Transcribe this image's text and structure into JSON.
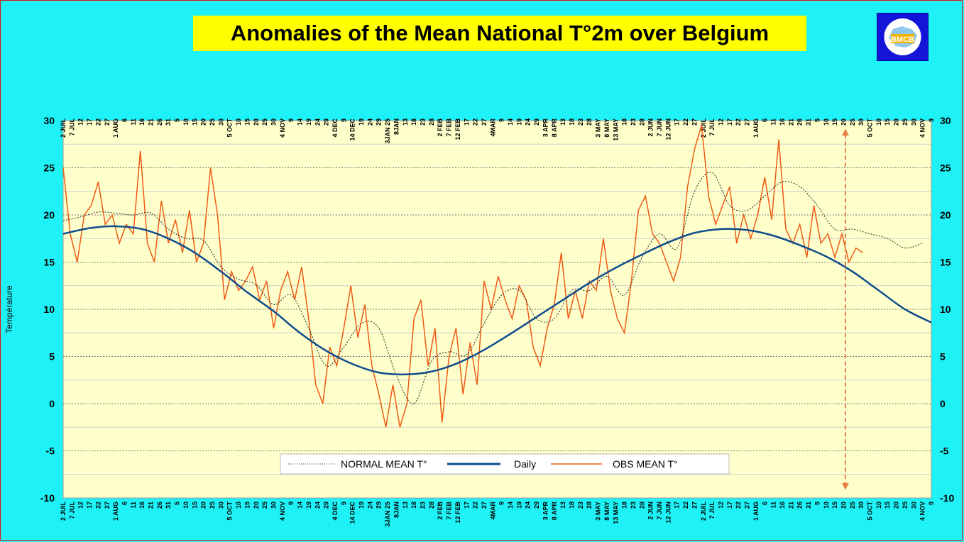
{
  "title": "Anomalies of the Mean National T°2m over Belgium",
  "logo_text": "BMCB",
  "colors": {
    "background": "#1ff2f7",
    "plot": "#ffffcc",
    "normal": "#0e4d8c",
    "obs": "#f05a14",
    "daily": "#222222",
    "marker": "#e8804a"
  },
  "chart_data": {
    "type": "line",
    "ylabel": "Température",
    "ylim": [
      -10,
      30
    ],
    "yticks": [
      -10,
      -5,
      0,
      5,
      10,
      15,
      20,
      25,
      30
    ],
    "x_start": "2 JUIL",
    "x_end": "9 NOV (following year)",
    "x_days": 495,
    "x_tick_labels": [
      {
        "day": 0,
        "label": "2 JUIL"
      },
      {
        "day": 5,
        "label": "7 JUL"
      },
      {
        "day": 10,
        "label": "12"
      },
      {
        "day": 15,
        "label": "17"
      },
      {
        "day": 20,
        "label": "22"
      },
      {
        "day": 25,
        "label": "27"
      },
      {
        "day": 30,
        "label": "1 AUG"
      },
      {
        "day": 35,
        "label": "6"
      },
      {
        "day": 40,
        "label": "11"
      },
      {
        "day": 45,
        "label": "16"
      },
      {
        "day": 50,
        "label": "21"
      },
      {
        "day": 55,
        "label": "26"
      },
      {
        "day": 60,
        "label": "31"
      },
      {
        "day": 65,
        "label": "5"
      },
      {
        "day": 70,
        "label": "10"
      },
      {
        "day": 75,
        "label": "15"
      },
      {
        "day": 80,
        "label": "20"
      },
      {
        "day": 85,
        "label": "25"
      },
      {
        "day": 90,
        "label": "30"
      },
      {
        "day": 95,
        "label": "5 OCT"
      },
      {
        "day": 100,
        "label": "10"
      },
      {
        "day": 105,
        "label": "15"
      },
      {
        "day": 110,
        "label": "20"
      },
      {
        "day": 115,
        "label": "25"
      },
      {
        "day": 120,
        "label": "30"
      },
      {
        "day": 125,
        "label": "4 NOV"
      },
      {
        "day": 130,
        "label": "9"
      },
      {
        "day": 135,
        "label": "14"
      },
      {
        "day": 140,
        "label": "19"
      },
      {
        "day": 145,
        "label": "24"
      },
      {
        "day": 150,
        "label": "29"
      },
      {
        "day": 155,
        "label": "4 DEC"
      },
      {
        "day": 160,
        "label": "9"
      },
      {
        "day": 165,
        "label": "14 DEC"
      },
      {
        "day": 170,
        "label": "19"
      },
      {
        "day": 175,
        "label": "24"
      },
      {
        "day": 180,
        "label": "29"
      },
      {
        "day": 185,
        "label": "3JAN 25"
      },
      {
        "day": 190,
        "label": "8JAN"
      },
      {
        "day": 195,
        "label": "13"
      },
      {
        "day": 200,
        "label": "18"
      },
      {
        "day": 205,
        "label": "23"
      },
      {
        "day": 210,
        "label": "28"
      },
      {
        "day": 215,
        "label": "2 FEB"
      },
      {
        "day": 220,
        "label": "7 FEB"
      },
      {
        "day": 225,
        "label": "12 FEB"
      },
      {
        "day": 230,
        "label": "17"
      },
      {
        "day": 235,
        "label": "22"
      },
      {
        "day": 240,
        "label": "27"
      },
      {
        "day": 245,
        "label": "4MAR"
      },
      {
        "day": 250,
        "label": "9"
      },
      {
        "day": 255,
        "label": "14"
      },
      {
        "day": 260,
        "label": "19"
      },
      {
        "day": 265,
        "label": "24"
      },
      {
        "day": 270,
        "label": "29"
      },
      {
        "day": 275,
        "label": "3 APR"
      },
      {
        "day": 280,
        "label": "8 APR"
      },
      {
        "day": 285,
        "label": "13"
      },
      {
        "day": 290,
        "label": "18"
      },
      {
        "day": 295,
        "label": "23"
      },
      {
        "day": 300,
        "label": "28"
      },
      {
        "day": 305,
        "label": "3 MAY"
      },
      {
        "day": 310,
        "label": "8 MAY"
      },
      {
        "day": 315,
        "label": "13 MAY"
      },
      {
        "day": 320,
        "label": "18"
      },
      {
        "day": 325,
        "label": "23"
      },
      {
        "day": 330,
        "label": "28"
      },
      {
        "day": 335,
        "label": "2 JUN"
      },
      {
        "day": 340,
        "label": "7 JUN"
      },
      {
        "day": 345,
        "label": "12 JUN"
      },
      {
        "day": 350,
        "label": "17"
      },
      {
        "day": 355,
        "label": "22"
      },
      {
        "day": 360,
        "label": "27"
      },
      {
        "day": 365,
        "label": "2 JUIL"
      },
      {
        "day": 370,
        "label": "7 JUL"
      },
      {
        "day": 375,
        "label": "12"
      },
      {
        "day": 380,
        "label": "17"
      },
      {
        "day": 385,
        "label": "22"
      },
      {
        "day": 390,
        "label": "27"
      },
      {
        "day": 395,
        "label": "1 AUG"
      },
      {
        "day": 400,
        "label": "6"
      },
      {
        "day": 405,
        "label": "11"
      },
      {
        "day": 410,
        "label": "16"
      },
      {
        "day": 415,
        "label": "21"
      },
      {
        "day": 420,
        "label": "26"
      },
      {
        "day": 425,
        "label": "31"
      },
      {
        "day": 430,
        "label": "5"
      },
      {
        "day": 435,
        "label": "10"
      },
      {
        "day": 440,
        "label": "15"
      },
      {
        "day": 445,
        "label": "20"
      },
      {
        "day": 450,
        "label": "25"
      },
      {
        "day": 455,
        "label": "30"
      },
      {
        "day": 460,
        "label": "5 OCT"
      },
      {
        "day": 465,
        "label": "10"
      },
      {
        "day": 470,
        "label": "15"
      },
      {
        "day": 475,
        "label": "20"
      },
      {
        "day": 480,
        "label": "25"
      },
      {
        "day": 485,
        "label": "30"
      },
      {
        "day": 490,
        "label": "4 NOV"
      },
      {
        "day": 495,
        "label": "9"
      }
    ],
    "series": [
      {
        "name": "NORMAL MEAN T°",
        "style": "dotted",
        "x": [
          0,
          10,
          20,
          30,
          40,
          50,
          60,
          70,
          80,
          90,
          100,
          110,
          120,
          130,
          140,
          150,
          160,
          170,
          180,
          190,
          200,
          210,
          220,
          230,
          240,
          250,
          260,
          270,
          280,
          290,
          300,
          310,
          320,
          330,
          340,
          350,
          360,
          370,
          380,
          390,
          400,
          410,
          420,
          430,
          440,
          450,
          460,
          470,
          480,
          490
        ],
        "values": [
          19.4,
          19.8,
          20.3,
          20.2,
          20.0,
          20.2,
          18.5,
          17.5,
          17.3,
          14.5,
          13.2,
          12.6,
          10.5,
          11.5,
          8.0,
          4.0,
          6.0,
          8.5,
          8.0,
          3.0,
          0.0,
          4.5,
          5.5,
          5.2,
          8.5,
          11.5,
          12.0,
          9.0,
          9.0,
          12.0,
          12.0,
          13.5,
          11.5,
          15.5,
          18.0,
          16.5,
          22.5,
          24.5,
          21.0,
          20.5,
          22.0,
          23.5,
          23.0,
          21.0,
          18.5,
          18.5,
          18.0,
          17.5,
          16.5,
          17.0
        ]
      },
      {
        "name": "Daily",
        "style": "solid",
        "x": [
          0,
          15,
          30,
          45,
          60,
          75,
          90,
          105,
          120,
          135,
          150,
          165,
          180,
          195,
          210,
          225,
          240,
          255,
          270,
          285,
          300,
          315,
          330,
          345,
          360,
          375,
          390,
          405,
          420,
          435,
          450,
          465,
          480,
          495
        ],
        "values": [
          18.0,
          18.6,
          18.8,
          18.5,
          17.5,
          16.0,
          14.0,
          11.8,
          9.8,
          7.5,
          5.6,
          4.2,
          3.3,
          3.1,
          3.4,
          4.3,
          5.7,
          7.4,
          9.2,
          11.0,
          12.8,
          14.4,
          15.8,
          17.1,
          18.1,
          18.5,
          18.4,
          17.8,
          16.8,
          15.6,
          14.0,
          12.0,
          10.0,
          8.6
        ]
      },
      {
        "name": "OBS MEAN T°",
        "style": "solid",
        "x": [
          0,
          4,
          8,
          12,
          16,
          20,
          24,
          28,
          32,
          36,
          40,
          44,
          48,
          52,
          56,
          60,
          64,
          68,
          72,
          76,
          80,
          84,
          88,
          92,
          96,
          100,
          104,
          108,
          112,
          116,
          120,
          124,
          128,
          132,
          136,
          140,
          144,
          148,
          152,
          156,
          160,
          164,
          168,
          172,
          176,
          180,
          184,
          188,
          192,
          196,
          200,
          204,
          208,
          212,
          216,
          220,
          224,
          228,
          232,
          236,
          240,
          244,
          248,
          252,
          256,
          260,
          264,
          268,
          272,
          276,
          280,
          284,
          288,
          292,
          296,
          300,
          304,
          308,
          312,
          316,
          320,
          324,
          328,
          332,
          336,
          340,
          344,
          348,
          352,
          356,
          360,
          364,
          368,
          372,
          376,
          380,
          384,
          388,
          392,
          396,
          400,
          404,
          408,
          412,
          416,
          420,
          424,
          428,
          432,
          436,
          440,
          444,
          448,
          452,
          456
        ],
        "values": [
          25.0,
          18.0,
          15.0,
          20.0,
          21.0,
          23.5,
          19.0,
          20.0,
          17.0,
          19.0,
          18.0,
          26.8,
          17.0,
          15.0,
          21.5,
          17.0,
          19.5,
          16.0,
          20.5,
          15.0,
          17.0,
          25.0,
          20.0,
          11.0,
          14.0,
          12.0,
          13.0,
          14.5,
          11.0,
          13.0,
          8.0,
          12.0,
          14.0,
          11.0,
          14.5,
          9.0,
          2.0,
          0.0,
          6.0,
          4.0,
          8.0,
          12.5,
          7.0,
          10.5,
          4.0,
          1.0,
          -2.5,
          2.0,
          -2.5,
          0.0,
          9.0,
          11.0,
          4.0,
          8.0,
          -2.0,
          5.0,
          8.0,
          1.0,
          6.5,
          2.0,
          13.0,
          10.0,
          13.5,
          11.0,
          9.0,
          12.5,
          11.0,
          6.0,
          4.0,
          8.0,
          10.5,
          16.0,
          9.0,
          12.0,
          9.0,
          13.0,
          12.0,
          17.5,
          12.0,
          9.0,
          7.5,
          13.0,
          20.5,
          22.0,
          18.0,
          17.0,
          15.0,
          13.0,
          15.5,
          23.0,
          27.0,
          29.5,
          22.0,
          19.0,
          21.0,
          23.0,
          17.0,
          20.0,
          17.5,
          20.0,
          24.0,
          19.5,
          28.0,
          18.5,
          17.0,
          19.0,
          15.5,
          21.0,
          17.0,
          18.0,
          15.5,
          18.0,
          15.0,
          16.5,
          16.0
        ]
      }
    ],
    "marker_line": {
      "x": 446,
      "y_range": [
        -9,
        29
      ]
    },
    "legend": {
      "placement": "bottom-center",
      "entries": [
        "NORMAL MEAN T°",
        "Daily",
        "OBS MEAN T°"
      ]
    },
    "grid": true
  }
}
